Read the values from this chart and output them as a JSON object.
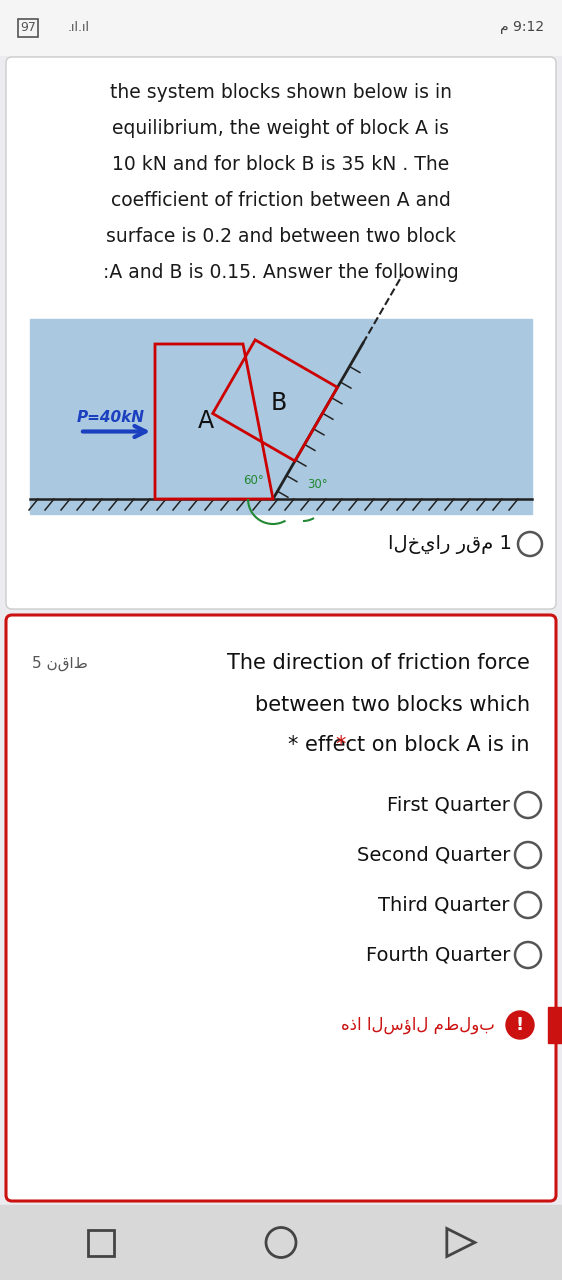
{
  "bg_color": "#ebebf0",
  "white_card_color": "#ffffff",
  "status_bar_bg": "#f5f5f5",
  "main_text_lines": [
    "the system blocks shown below is in",
    "equilibrium, the weight of block A is",
    "10 kN and for block B is 35 kN . The",
    "coefficient of friction between A and",
    "surface is 0.2 and between two block",
    ":A and B is 0.15. Answer the following"
  ],
  "diagram_bg": "#aac8e0",
  "p_label": "P=40kN",
  "block_A_label": "A",
  "block_B_label": "B",
  "angle1_label": "60°",
  "angle2_label": "30°",
  "option1_text": "الخيار رقم 1",
  "red_border_color": "#cc1111",
  "points_label": "5 نقاط",
  "question_title": "The direction of friction force",
  "question_line2": "between two blocks which",
  "question_line3": "* effect on block A is in",
  "choices": [
    "First Quarter",
    "Second Quarter",
    "Third Quarter",
    "Fourth Quarter"
  ],
  "required_text": "هذا السؤال مطلوب",
  "nav_bg": "#d8d8d8",
  "fig_width": 5.62,
  "fig_height": 12.8,
  "dpi": 100
}
